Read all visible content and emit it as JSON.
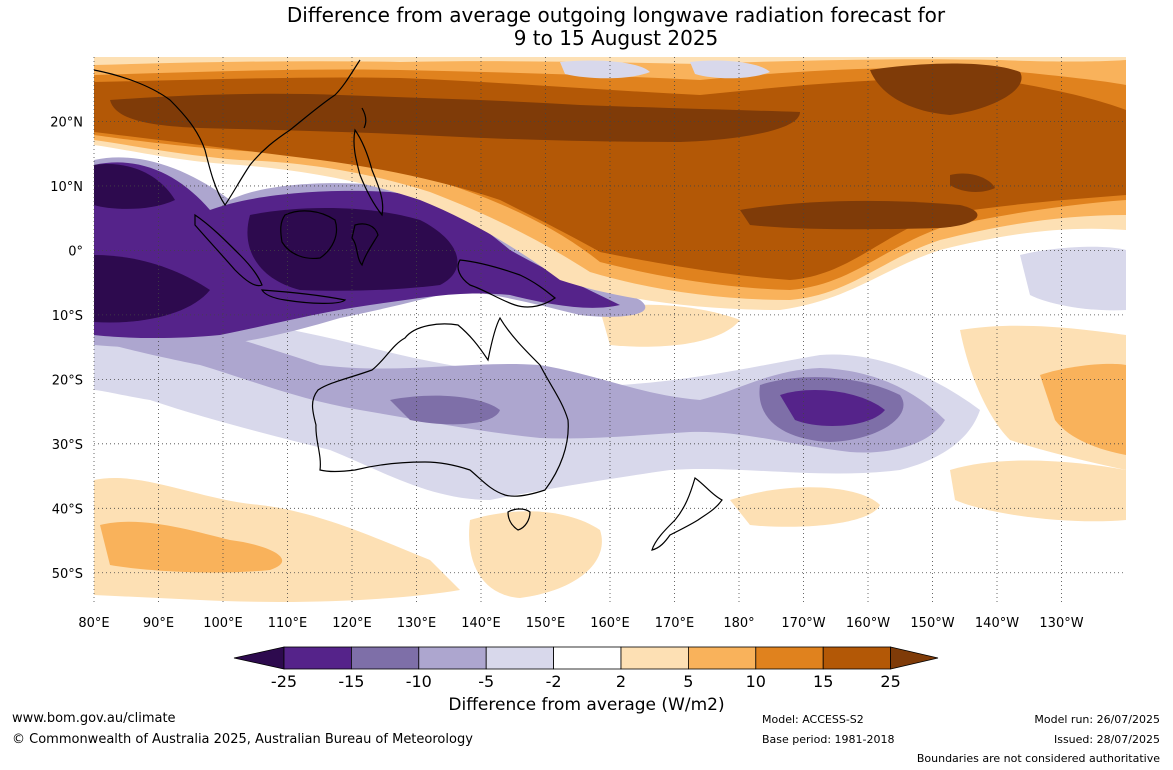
{
  "title": {
    "line1": "Difference from average outgoing longwave radiation forecast for",
    "line2": "9 to 15 August 2025"
  },
  "map": {
    "lat_labels": [
      "20°N",
      "10°N",
      "0°",
      "10°S",
      "20°S",
      "30°S",
      "40°S",
      "50°S"
    ],
    "lat_values": [
      20,
      10,
      0,
      -10,
      -20,
      -30,
      -40,
      -50
    ],
    "lon_labels": [
      "80°E",
      "90°E",
      "100°E",
      "110°E",
      "120°E",
      "130°E",
      "140°E",
      "150°E",
      "160°E",
      "170°E",
      "180°",
      "170°W",
      "160°W",
      "150°W",
      "140°W",
      "130°W"
    ],
    "lon_values": [
      80,
      90,
      100,
      110,
      120,
      130,
      140,
      150,
      160,
      170,
      180,
      190,
      200,
      210,
      220,
      230
    ],
    "extent": {
      "lon_min": 80,
      "lon_max": 240,
      "lat_min": -55,
      "lat_max": 30
    }
  },
  "colorbar": {
    "ticks": [
      "-25",
      "-15",
      "-10",
      "-5",
      "-2",
      "2",
      "5",
      "10",
      "15",
      "25"
    ],
    "colors": [
      "#2d0a4e",
      "#55238a",
      "#7e6fa8",
      "#ada6cf",
      "#d8d8eb",
      "#ffffff",
      "#fde0b4",
      "#f9b25b",
      "#e0821e",
      "#b35806",
      "#7f3b08"
    ],
    "label": "Difference from average (W/m2)"
  },
  "footer": {
    "website": "www.bom.gov.au/climate",
    "copyright": "© Commonwealth of Australia 2025, Australian Bureau of Meteorology",
    "model": "Model: ACCESS-S2",
    "base_period": "Base period: 1981-2018",
    "model_run": "Model run: 26/07/2025",
    "issued": "Issued: 28/07/2025",
    "disclaimer": "Boundaries are not considered authoritative"
  }
}
